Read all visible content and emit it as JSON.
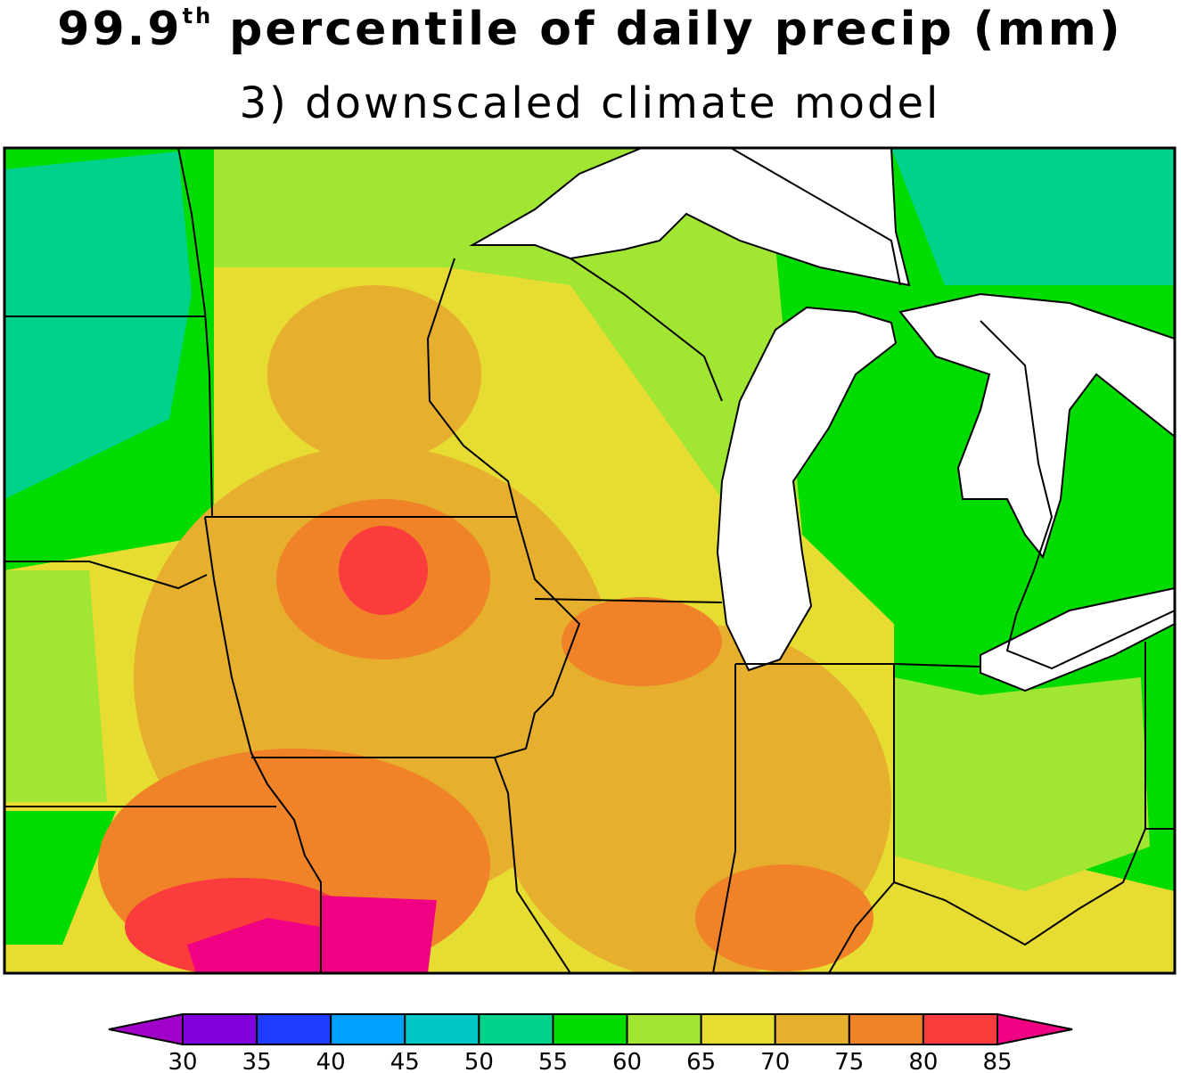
{
  "title": {
    "lead": "99.9",
    "superscript": "th",
    "rest": "percentile of daily precip (mm)"
  },
  "subtitle": "3) downscaled climate model",
  "colorbar": {
    "ticks": [
      30,
      35,
      40,
      45,
      50,
      55,
      60,
      65,
      70,
      75,
      80,
      85
    ],
    "colors": [
      "#a000c8",
      "#8200dc",
      "#1e3cff",
      "#00a0ff",
      "#00c8c8",
      "#00d28c",
      "#00dc00",
      "#a0e632",
      "#e6dc32",
      "#e6af2d",
      "#f08228",
      "#fa3c3c",
      "#f00082"
    ]
  }
}
